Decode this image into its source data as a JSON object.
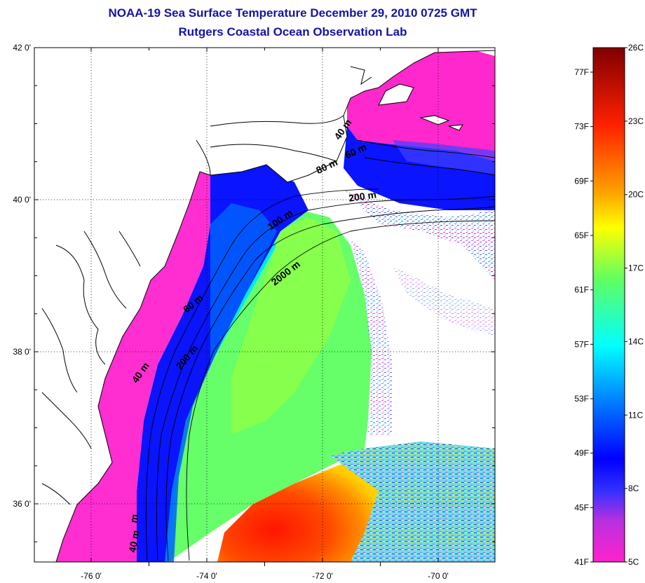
{
  "title": {
    "line1": "NOAA-19 Sea Surface Temperature December 29, 2010 0725 GMT",
    "line2": "Rutgers Coastal Ocean Observation Lab"
  },
  "map": {
    "latitude_labels": [
      {
        "value": 42,
        "label": "42 0'"
      },
      {
        "value": 40,
        "label": "40 0'"
      },
      {
        "value": 38,
        "label": "38 0'"
      },
      {
        "value": 36,
        "label": "36 0'"
      }
    ],
    "longitude_labels": [
      {
        "value": -76,
        "label": "-76 0'"
      },
      {
        "value": -74,
        "label": "-74 0'"
      },
      {
        "value": -72,
        "label": "-72 0'"
      },
      {
        "value": -70,
        "label": "-70 0'"
      }
    ],
    "isobath_labels": [
      {
        "text": "40 m",
        "lon": -71.6,
        "lat": 40.9
      },
      {
        "text": "60 m",
        "lon": -71.4,
        "lat": 40.6
      },
      {
        "text": "80 m",
        "lon": -71.9,
        "lat": 40.4
      },
      {
        "text": "200 m",
        "lon": -71.3,
        "lat": 40.0
      },
      {
        "text": "100 m",
        "lon": -72.7,
        "lat": 39.7
      },
      {
        "text": "2000 m",
        "lon": -72.6,
        "lat": 39.0
      },
      {
        "text": "60 m",
        "lon": -74.2,
        "lat": 38.6
      },
      {
        "text": "200 m",
        "lon": -74.3,
        "lat": 37.9
      },
      {
        "text": "40 m",
        "lon": -75.1,
        "lat": 37.7
      },
      {
        "text": "40 m",
        "lon": -75.2,
        "lat": 35.5
      },
      {
        "text": "m",
        "lon": -75.2,
        "lat": 35.8
      }
    ]
  },
  "colorbar": {
    "celsius_labels": [
      {
        "value": 26,
        "label": "26C"
      },
      {
        "value": 23,
        "label": "23C"
      },
      {
        "value": 20,
        "label": "20C"
      },
      {
        "value": 17,
        "label": "17C"
      },
      {
        "value": 14,
        "label": "14C"
      },
      {
        "value": 11,
        "label": "11C"
      },
      {
        "value": 8,
        "label": "8C"
      },
      {
        "value": 5,
        "label": "5C"
      }
    ],
    "fahrenheit_labels": [
      {
        "value": 77,
        "label": "77F"
      },
      {
        "value": 73,
        "label": "73F"
      },
      {
        "value": 69,
        "label": "69F"
      },
      {
        "value": 65,
        "label": "65F"
      },
      {
        "value": 61,
        "label": "61F"
      },
      {
        "value": 57,
        "label": "57F"
      },
      {
        "value": 53,
        "label": "53F"
      },
      {
        "value": 49,
        "label": "49F"
      },
      {
        "value": 45,
        "label": "45F"
      },
      {
        "value": 41,
        "label": "41F"
      }
    ]
  }
}
